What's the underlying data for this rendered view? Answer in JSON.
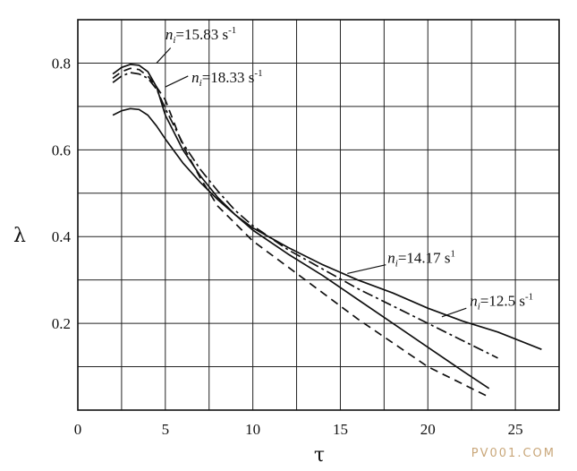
{
  "chart_data": {
    "type": "line",
    "title": "",
    "xlabel": "τ",
    "ylabel": "λ",
    "xlim": [
      0,
      27.5
    ],
    "ylim": [
      0,
      0.9
    ],
    "xticks": [
      0,
      5,
      10,
      15,
      20,
      25
    ],
    "yticks": [
      0.2,
      0.4,
      0.6,
      0.8
    ],
    "x_tick_labels": [
      "0",
      "5",
      "10",
      "15",
      "20",
      "25"
    ],
    "y_tick_labels": [
      "0.2",
      "0.4",
      "0.6",
      "0.8"
    ],
    "grid": true,
    "series": [
      {
        "name": "n=15.83 s^-1",
        "style": "solid",
        "x": [
          2.0,
          2.5,
          3.0,
          3.5,
          4.0,
          4.5,
          5.0,
          6.0,
          7.0,
          8.0,
          9.0,
          10.0,
          12.0,
          14.0,
          16.0,
          18.0,
          20.0,
          22.0,
          23.5
        ],
        "y": [
          0.775,
          0.79,
          0.797,
          0.795,
          0.78,
          0.745,
          0.68,
          0.6,
          0.54,
          0.49,
          0.45,
          0.415,
          0.36,
          0.31,
          0.255,
          0.2,
          0.145,
          0.09,
          0.05
        ]
      },
      {
        "name": "n=18.33 s^-1",
        "style": "solid",
        "x": [
          2.0,
          2.5,
          3.0,
          3.5,
          4.0,
          4.5,
          5.0,
          6.0,
          7.0,
          8.0,
          9.0,
          10.0,
          12.0,
          14.0,
          16.0,
          18.0,
          20.0,
          22.0,
          24.0,
          26.5
        ],
        "y": [
          0.68,
          0.69,
          0.695,
          0.693,
          0.68,
          0.655,
          0.625,
          0.57,
          0.525,
          0.485,
          0.45,
          0.42,
          0.375,
          0.335,
          0.3,
          0.27,
          0.235,
          0.205,
          0.18,
          0.14
        ]
      },
      {
        "name": "n=14.17 s^-1",
        "style": "dash-dot",
        "x": [
          2.0,
          2.5,
          3.0,
          3.5,
          4.0,
          4.5,
          5.0,
          6.0,
          7.0,
          8.0,
          9.0,
          10.0,
          12.0,
          14.0,
          16.0,
          18.0,
          20.0,
          22.0,
          24.0
        ],
        "y": [
          0.755,
          0.77,
          0.778,
          0.775,
          0.765,
          0.74,
          0.695,
          0.615,
          0.555,
          0.505,
          0.46,
          0.425,
          0.37,
          0.325,
          0.28,
          0.24,
          0.2,
          0.16,
          0.12
        ]
      },
      {
        "name": "n=12.5 s^-1",
        "style": "dashed",
        "x": [
          2.0,
          2.5,
          3.0,
          3.5,
          4.0,
          4.5,
          5.0,
          6.0,
          7.0,
          8.0,
          9.0,
          10.0,
          12.0,
          14.0,
          16.0,
          18.0,
          20.0,
          22.0,
          23.5
        ],
        "y": [
          0.765,
          0.78,
          0.788,
          0.785,
          0.77,
          0.745,
          0.715,
          0.61,
          0.535,
          0.47,
          0.43,
          0.39,
          0.33,
          0.27,
          0.21,
          0.155,
          0.1,
          0.06,
          0.03
        ]
      }
    ],
    "annotations": [
      {
        "italic": "n",
        "sub": "i",
        "text": "=15.83 s",
        "sup": "-1",
        "x": 5.0,
        "y": 0.855,
        "pointer": {
          "x1": 5.3,
          "y1": 0.835,
          "x2": 4.5,
          "y2": 0.8
        }
      },
      {
        "italic": "n",
        "sub": "i",
        "text": "=18.33 s",
        "sup": "-1",
        "x": 6.5,
        "y": 0.755,
        "pointer": {
          "x1": 6.3,
          "y1": 0.77,
          "x2": 5.0,
          "y2": 0.745
        }
      },
      {
        "italic": "n",
        "sub": "i",
        "text": "=14.17 s",
        "sup": "1",
        "x": 17.7,
        "y": 0.34,
        "pointer": {
          "x1": 17.6,
          "y1": 0.335,
          "x2": 15.4,
          "y2": 0.315
        }
      },
      {
        "italic": "n",
        "sub": "i",
        "text": "=12.5 s",
        "sup": "-1",
        "x": 22.4,
        "y": 0.24,
        "pointer": {
          "x1": 22.2,
          "y1": 0.235,
          "x2": 20.8,
          "y2": 0.215
        }
      }
    ]
  },
  "watermark": "PV001.COM"
}
